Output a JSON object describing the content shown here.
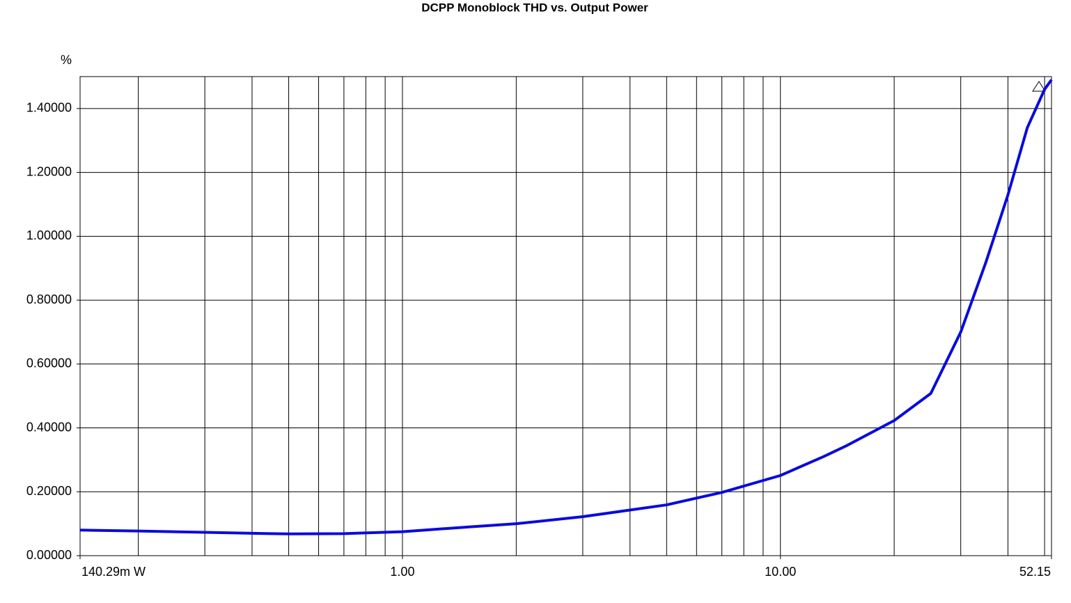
{
  "chart_data": {
    "type": "line",
    "title": "DCPP Monoblock THD vs. Output Power",
    "y_label": "%",
    "log_x": true,
    "grid": true,
    "xlim": [
      0.14029,
      52.15
    ],
    "xticks": [
      {
        "value": 0.14029,
        "label": "140.29m W"
      },
      {
        "value": 1,
        "label": "1.00"
      },
      {
        "value": 10,
        "label": "10.00"
      },
      {
        "value": 52.15,
        "label": "52.15"
      }
    ],
    "xminor": [
      0.2,
      0.3,
      0.4,
      0.5,
      0.6,
      0.7,
      0.8,
      0.9,
      2,
      3,
      4,
      5,
      6,
      7,
      8,
      9,
      20,
      30,
      40,
      50
    ],
    "ylim": [
      0,
      1.5
    ],
    "yticks": [
      {
        "value": 0,
        "label": "0.00000"
      },
      {
        "value": 0.2,
        "label": "0.20000"
      },
      {
        "value": 0.4,
        "label": "0.40000"
      },
      {
        "value": 0.6,
        "label": "0.60000"
      },
      {
        "value": 0.8,
        "label": "0.80000"
      },
      {
        "value": 1,
        "label": "1.00000"
      },
      {
        "value": 1.2,
        "label": "1.20000"
      },
      {
        "value": 1.4,
        "label": "1.40000"
      }
    ],
    "x": [
      0.14029,
      0.2,
      0.3,
      0.4,
      0.5,
      0.7,
      1,
      1.5,
      2,
      3,
      5,
      7,
      10,
      13,
      15,
      20,
      25,
      30,
      35,
      40,
      45,
      50,
      52.15
    ],
    "series": [
      {
        "color": "#0a0adc",
        "values": [
          0.08,
          0.077,
          0.073,
          0.07,
          0.068,
          0.069,
          0.075,
          0.09,
          0.1,
          0.122,
          0.159,
          0.198,
          0.251,
          0.31,
          0.345,
          0.423,
          0.508,
          0.7,
          0.92,
          1.13,
          1.34,
          1.46,
          1.49
        ]
      }
    ]
  }
}
